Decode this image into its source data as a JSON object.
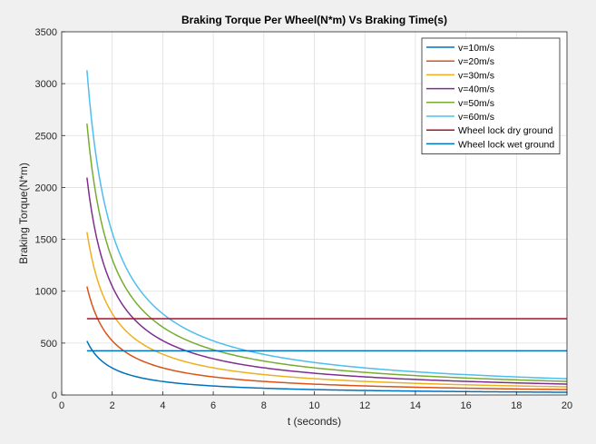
{
  "chart_data": {
    "type": "line",
    "title": "Braking Torque Per Wheel(N*m) Vs Braking Time(s)",
    "xlabel": "t (seconds)",
    "ylabel": "Braking Torque(N*m)",
    "xlim": [
      0,
      20
    ],
    "ylim": [
      0,
      3500
    ],
    "xticks": [
      0,
      2,
      4,
      6,
      8,
      10,
      12,
      14,
      16,
      18,
      20
    ],
    "yticks": [
      0,
      500,
      1000,
      1500,
      2000,
      2500,
      3000,
      3500
    ],
    "grid": true,
    "legend_position": "top-right",
    "series": [
      {
        "name": "v=10m/s",
        "color": "#0072BD",
        "model": "k/t",
        "k": 520,
        "x_range": [
          1,
          20
        ]
      },
      {
        "name": "v=20m/s",
        "color": "#D95319",
        "model": "k/t",
        "k": 1045,
        "x_range": [
          1,
          20
        ]
      },
      {
        "name": "v=30m/s",
        "color": "#EDB120",
        "model": "k/t",
        "k": 1570,
        "x_range": [
          1,
          20
        ]
      },
      {
        "name": "v=40m/s",
        "color": "#7E2F8E",
        "model": "k/t",
        "k": 2095,
        "x_range": [
          1,
          20
        ]
      },
      {
        "name": "v=50m/s",
        "color": "#77AC30",
        "model": "k/t",
        "k": 2615,
        "x_range": [
          1,
          20
        ]
      },
      {
        "name": "v=60m/s",
        "color": "#4DBEEE",
        "model": "k/t",
        "k": 3130,
        "x_range": [
          1,
          20
        ]
      },
      {
        "name": "Wheel lock dry ground",
        "color": "#A2142F",
        "model": "const",
        "value": 735,
        "x_range": [
          1,
          20
        ]
      },
      {
        "name": "Wheel lock wet ground",
        "color": "#0072BD",
        "model": "const",
        "value": 425,
        "x_range": [
          1,
          20
        ]
      }
    ]
  }
}
